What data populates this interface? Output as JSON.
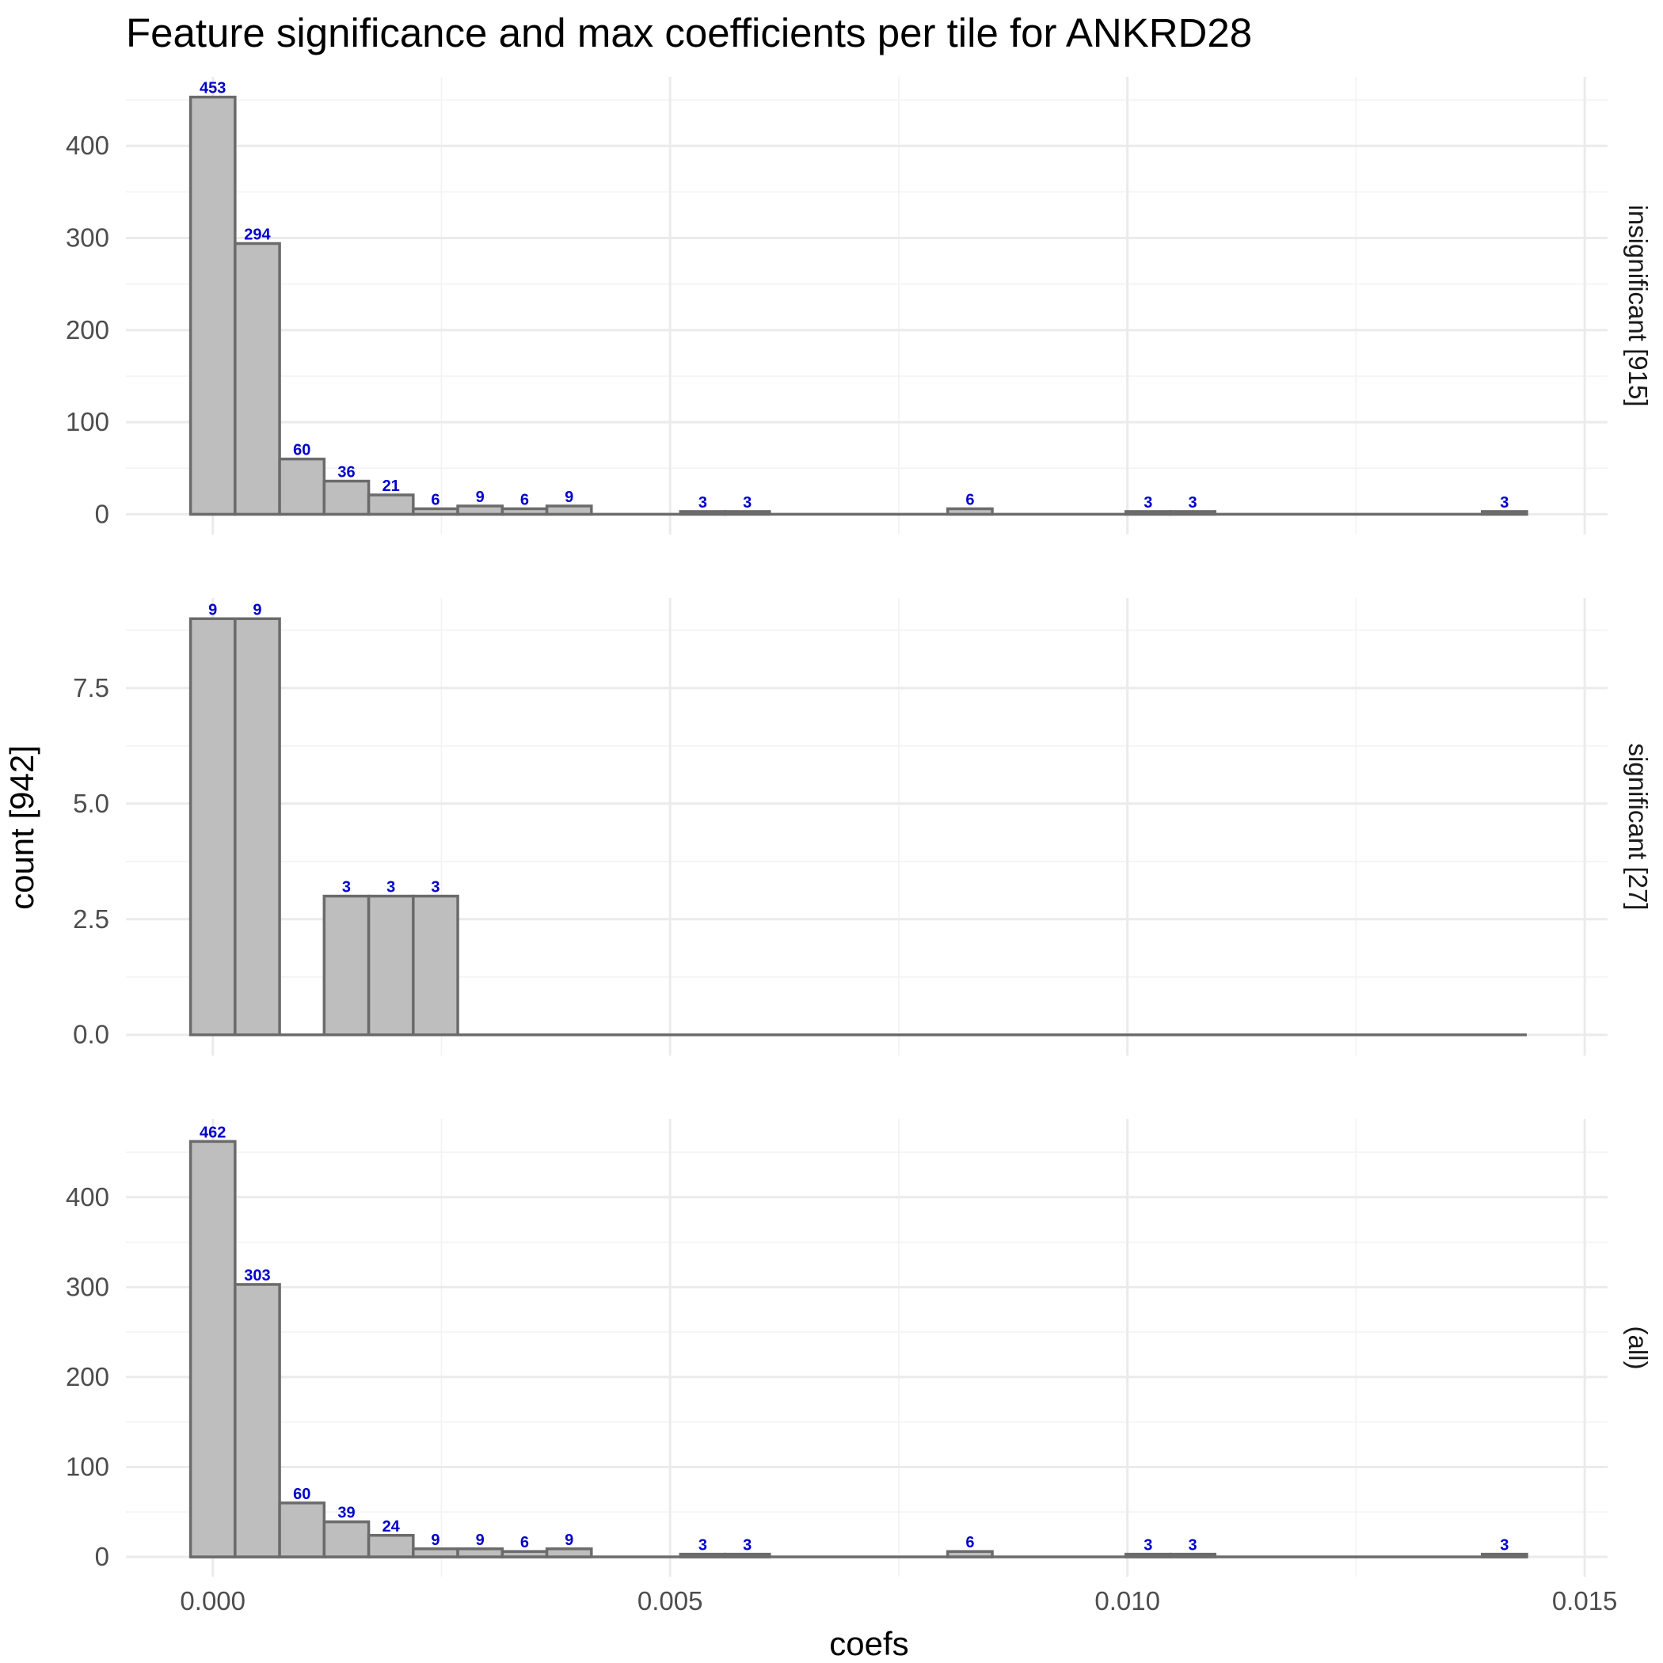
{
  "chart_data": {
    "type": "bar",
    "title": "Feature significance and max coefficients per tile for ANKRD28",
    "xlabel": "coefs",
    "ylabel": "count [942]",
    "xlim": [
      -0.00095,
      0.01525
    ],
    "x_ticks": [
      "0.000",
      "0.005",
      "0.010",
      "0.015"
    ],
    "x_tick_values": [
      0.0,
      0.005,
      0.01,
      0.015
    ],
    "bin_centers": [
      0.0,
      0.000487,
      0.000974,
      0.001461,
      0.001948,
      0.002435,
      0.002922,
      0.003409,
      0.003896,
      0.004383,
      0.00487,
      0.005357,
      0.005844,
      0.006331,
      0.006818,
      0.007305,
      0.007792,
      0.008279,
      0.008766,
      0.009253,
      0.00974,
      0.010227,
      0.010714,
      0.011201,
      0.011688,
      0.012175,
      0.012662,
      0.013149,
      0.013636,
      0.014123
    ],
    "colors": {
      "bar_fill": "#bebebe",
      "bar_outline": "#6b6b6b",
      "label": "#0000cc",
      "grid": "#ebebeb"
    },
    "grid": true,
    "panels": [
      {
        "strip": "insignificant [915]",
        "ylim": [
          -22,
          475
        ],
        "y_ticks": [
          "0",
          "100",
          "200",
          "300",
          "400"
        ],
        "y_tick_values": [
          0,
          100,
          200,
          300,
          400
        ],
        "values": [
          453,
          294,
          60,
          36,
          21,
          6,
          9,
          6,
          9,
          0,
          0,
          3,
          3,
          0,
          0,
          0,
          0,
          6,
          0,
          0,
          0,
          3,
          3,
          0,
          0,
          0,
          0,
          0,
          0,
          3
        ]
      },
      {
        "strip": "significant [27]",
        "ylim": [
          -0.45,
          9.45
        ],
        "y_ticks": [
          "0.0",
          "2.5",
          "5.0",
          "7.5"
        ],
        "y_tick_values": [
          0,
          2.5,
          5.0,
          7.5
        ],
        "values": [
          9,
          9,
          0,
          3,
          3,
          3,
          0,
          0,
          0,
          0,
          0,
          0,
          0,
          0,
          0,
          0,
          0,
          0,
          0,
          0,
          0,
          0,
          0,
          0,
          0,
          0,
          0,
          0,
          0,
          0
        ]
      },
      {
        "strip": "(all)",
        "ylim": [
          -22,
          487
        ],
        "y_ticks": [
          "0",
          "100",
          "200",
          "300",
          "400"
        ],
        "y_tick_values": [
          0,
          100,
          200,
          300,
          400
        ],
        "values": [
          462,
          303,
          60,
          39,
          24,
          9,
          9,
          6,
          9,
          0,
          0,
          3,
          3,
          0,
          0,
          0,
          0,
          6,
          0,
          0,
          0,
          3,
          3,
          0,
          0,
          0,
          0,
          0,
          0,
          3
        ]
      }
    ]
  }
}
